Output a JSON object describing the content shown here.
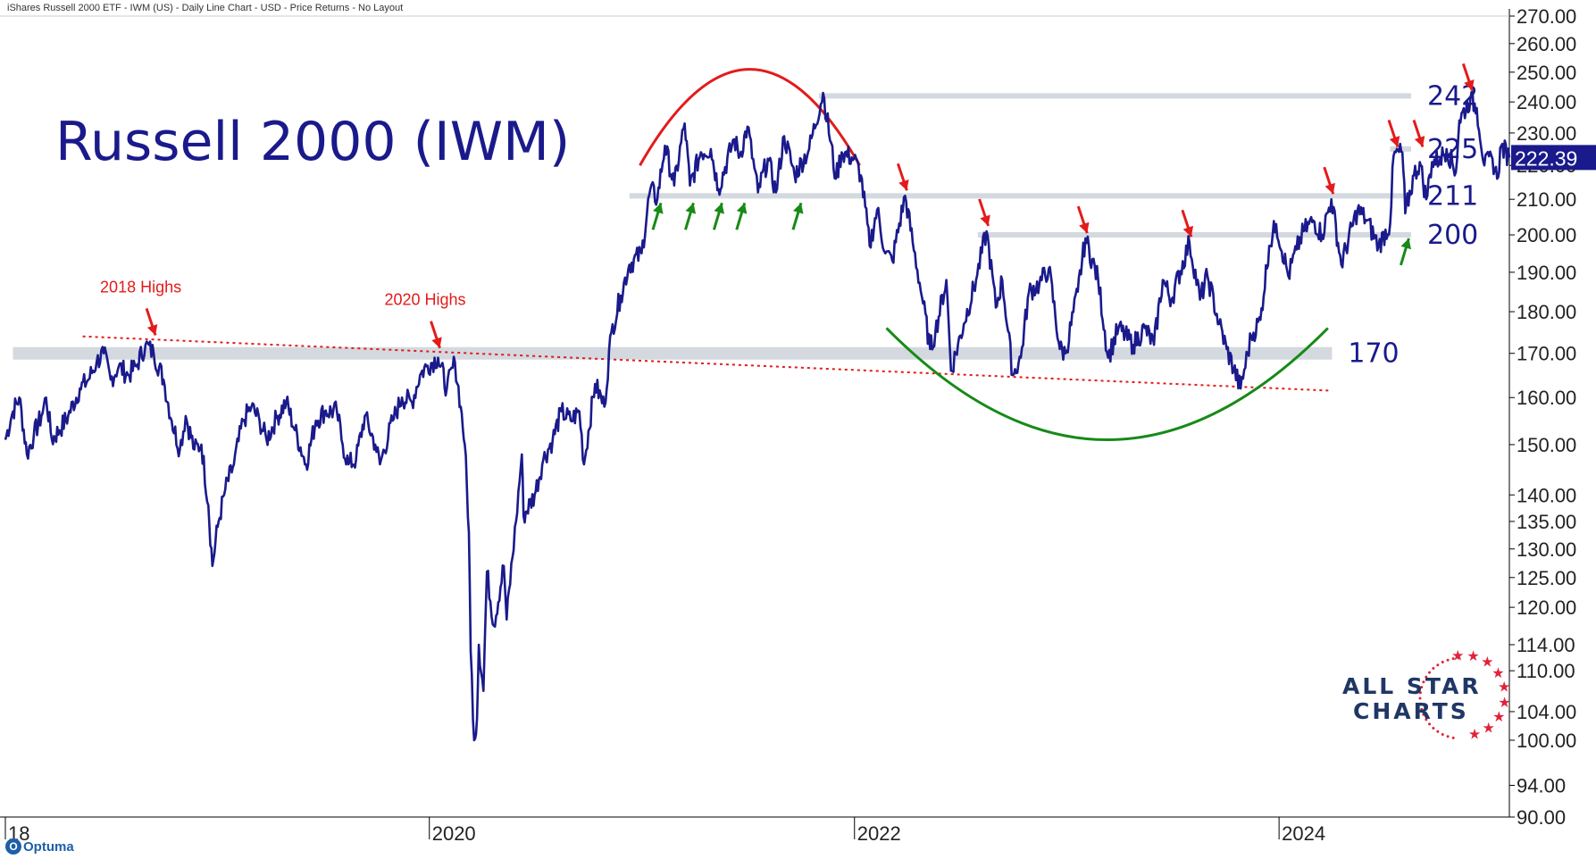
{
  "header": {
    "title": "iShares Russell 2000 ETF - IWM (US) - Daily Line Chart - USD - Price Returns - No Layout"
  },
  "main_title": "Russell 2000 (IWM)",
  "logo": {
    "line1": "ALL STAR",
    "line2": "CHARTS"
  },
  "watermark": "Optuma",
  "colors": {
    "price_line": "#1a1a8c",
    "resistance": "#e31b1b",
    "support": "#178a17",
    "level_band": "#d3d9df",
    "label_text": "#1a1a8c",
    "price_box": "#1a1a8c"
  },
  "chart_data": {
    "type": "line",
    "scale": "log",
    "ylim": [
      90,
      270
    ],
    "yticks": [
      90,
      94,
      100,
      104,
      110,
      114,
      120,
      125,
      130,
      135,
      140,
      150,
      160,
      170,
      180,
      190,
      200,
      210,
      220,
      230,
      240,
      250,
      260,
      270
    ],
    "ytick_labels": [
      "90.00",
      "94.00",
      "100.00",
      "104.00",
      "110.00",
      "114.00",
      "120.00",
      "125.00",
      "130.00",
      "135.00",
      "140.00",
      "150.00",
      "160.00",
      "170.00",
      "180.00",
      "190.00",
      "200.00",
      "210.00",
      "220.00",
      "230.00",
      "240.00",
      "250.00",
      "260.00",
      "270.00"
    ],
    "xlim": [
      "2018-01-02",
      "2025-01-31"
    ],
    "x_ticks": [
      {
        "date": "2018-01-01",
        "label": "18"
      },
      {
        "date": "2020-01-01",
        "label": "2020"
      },
      {
        "date": "2022-01-01",
        "label": "2022"
      },
      {
        "date": "2024-01-01",
        "label": "2024"
      }
    ],
    "last_price": {
      "value": 222.39,
      "label": "222.39"
    },
    "series": [
      {
        "values_note": "",
        "points": [
          [
            "2018-01-02",
            151
          ],
          [
            "2018-01-15",
            157
          ],
          [
            "2018-01-26",
            160
          ],
          [
            "2018-02-08",
            148
          ],
          [
            "2018-02-20",
            152
          ],
          [
            "2018-03-05",
            156
          ],
          [
            "2018-03-13",
            160
          ],
          [
            "2018-03-23",
            151
          ],
          [
            "2018-04-05",
            153
          ],
          [
            "2018-04-20",
            156
          ],
          [
            "2018-05-10",
            162
          ],
          [
            "2018-05-25",
            164
          ],
          [
            "2018-06-08",
            168
          ],
          [
            "2018-06-20",
            170
          ],
          [
            "2018-07-02",
            164
          ],
          [
            "2018-07-16",
            167
          ],
          [
            "2018-08-01",
            165
          ],
          [
            "2018-08-15",
            167
          ],
          [
            "2018-08-31",
            172
          ],
          [
            "2018-09-14",
            170
          ],
          [
            "2018-10-01",
            164
          ],
          [
            "2018-10-15",
            155
          ],
          [
            "2018-10-29",
            149
          ],
          [
            "2018-11-08",
            156
          ],
          [
            "2018-11-23",
            149
          ],
          [
            "2018-12-05",
            150
          ],
          [
            "2018-12-17",
            138
          ],
          [
            "2018-12-24",
            127
          ],
          [
            "2019-01-02",
            134
          ],
          [
            "2019-01-15",
            141
          ],
          [
            "2019-01-30",
            146
          ],
          [
            "2019-02-15",
            155
          ],
          [
            "2019-03-01",
            158
          ],
          [
            "2019-03-15",
            155
          ],
          [
            "2019-03-27",
            151
          ],
          [
            "2019-04-15",
            156
          ],
          [
            "2019-04-30",
            159
          ],
          [
            "2019-05-15",
            153
          ],
          [
            "2019-06-03",
            146
          ],
          [
            "2019-06-20",
            155
          ],
          [
            "2019-07-05",
            157
          ],
          [
            "2019-07-26",
            157
          ],
          [
            "2019-08-05",
            150
          ],
          [
            "2019-08-15",
            146
          ],
          [
            "2019-08-28",
            147
          ],
          [
            "2019-09-12",
            156
          ],
          [
            "2019-09-30",
            150
          ],
          [
            "2019-10-08",
            146
          ],
          [
            "2019-10-30",
            155
          ],
          [
            "2019-11-15",
            160
          ],
          [
            "2019-12-02",
            159
          ],
          [
            "2019-12-16",
            165
          ],
          [
            "2019-12-27",
            167
          ],
          [
            "2020-01-16",
            169
          ],
          [
            "2020-01-31",
            162
          ],
          [
            "2020-02-14",
            168
          ],
          [
            "2020-02-24",
            158
          ],
          [
            "2020-03-02",
            150
          ],
          [
            "2020-03-09",
            133
          ],
          [
            "2020-03-12",
            113
          ],
          [
            "2020-03-18",
            100
          ],
          [
            "2020-03-23",
            103
          ],
          [
            "2020-03-26",
            114
          ],
          [
            "2020-04-03",
            107
          ],
          [
            "2020-04-09",
            126
          ],
          [
            "2020-04-21",
            117
          ],
          [
            "2020-05-08",
            127
          ],
          [
            "2020-05-13",
            118
          ],
          [
            "2020-05-29",
            135
          ],
          [
            "2020-06-08",
            148
          ],
          [
            "2020-06-11",
            136
          ],
          [
            "2020-06-30",
            140
          ],
          [
            "2020-07-15",
            147
          ],
          [
            "2020-07-31",
            151
          ],
          [
            "2020-08-15",
            157
          ],
          [
            "2020-08-31",
            155
          ],
          [
            "2020-09-15",
            157
          ],
          [
            "2020-09-23",
            146
          ],
          [
            "2020-10-12",
            163
          ],
          [
            "2020-10-28",
            158
          ],
          [
            "2020-11-09",
            175
          ],
          [
            "2020-11-25",
            184
          ],
          [
            "2020-12-10",
            192
          ],
          [
            "2020-12-31",
            195
          ],
          [
            "2021-01-15",
            213
          ],
          [
            "2021-01-27",
            210
          ],
          [
            "2021-02-09",
            226
          ],
          [
            "2021-02-25",
            214
          ],
          [
            "2021-03-15",
            233
          ],
          [
            "2021-03-24",
            214
          ],
          [
            "2021-04-12",
            224
          ],
          [
            "2021-04-29",
            225
          ],
          [
            "2021-05-12",
            213
          ],
          [
            "2021-06-08",
            228
          ],
          [
            "2021-06-18",
            223
          ],
          [
            "2021-07-01",
            232
          ],
          [
            "2021-07-19",
            212
          ],
          [
            "2021-08-05",
            222
          ],
          [
            "2021-08-19",
            212
          ],
          [
            "2021-09-02",
            229
          ],
          [
            "2021-09-20",
            217
          ],
          [
            "2021-10-15",
            225
          ],
          [
            "2021-11-08",
            243
          ],
          [
            "2021-11-30",
            216
          ],
          [
            "2021-12-10",
            224
          ],
          [
            "2021-12-31",
            222
          ],
          [
            "2022-01-12",
            217
          ],
          [
            "2022-01-27",
            197
          ],
          [
            "2022-02-09",
            207
          ],
          [
            "2022-02-23",
            195
          ],
          [
            "2022-03-07",
            193
          ],
          [
            "2022-03-29",
            211
          ],
          [
            "2022-04-11",
            198
          ],
          [
            "2022-04-29",
            182
          ],
          [
            "2022-05-11",
            171
          ],
          [
            "2022-05-20",
            175
          ],
          [
            "2022-06-08",
            188
          ],
          [
            "2022-06-16",
            166
          ],
          [
            "2022-07-08",
            177
          ],
          [
            "2022-07-29",
            188
          ],
          [
            "2022-08-16",
            201
          ],
          [
            "2022-09-01",
            181
          ],
          [
            "2022-09-12",
            188
          ],
          [
            "2022-09-30",
            165
          ],
          [
            "2022-10-14",
            169
          ],
          [
            "2022-10-28",
            185
          ],
          [
            "2022-11-15",
            187
          ],
          [
            "2022-12-01",
            191
          ],
          [
            "2022-12-20",
            171
          ],
          [
            "2022-12-30",
            170
          ],
          [
            "2023-01-20",
            185
          ],
          [
            "2023-02-02",
            199
          ],
          [
            "2023-02-24",
            188
          ],
          [
            "2023-03-13",
            169
          ],
          [
            "2023-03-31",
            176
          ],
          [
            "2023-04-25",
            172
          ],
          [
            "2023-05-15",
            176
          ],
          [
            "2023-05-31",
            172
          ],
          [
            "2023-06-15",
            188
          ],
          [
            "2023-06-30",
            183
          ],
          [
            "2023-07-31",
            198
          ],
          [
            "2023-08-18",
            183
          ],
          [
            "2023-08-31",
            189
          ],
          [
            "2023-09-20",
            177
          ],
          [
            "2023-10-03",
            171
          ],
          [
            "2023-10-27",
            162
          ],
          [
            "2023-11-14",
            174
          ],
          [
            "2023-11-30",
            178
          ],
          [
            "2023-12-15",
            197
          ],
          [
            "2023-12-27",
            203
          ],
          [
            "2024-01-17",
            189
          ],
          [
            "2024-01-31",
            196
          ],
          [
            "2024-02-12",
            201
          ],
          [
            "2024-02-29",
            204
          ],
          [
            "2024-03-15",
            200
          ],
          [
            "2024-03-31",
            210
          ],
          [
            "2024-04-17",
            192
          ],
          [
            "2024-05-15",
            207
          ],
          [
            "2024-05-31",
            204
          ],
          [
            "2024-06-20",
            197
          ],
          [
            "2024-07-10",
            203
          ],
          [
            "2024-07-16",
            223
          ],
          [
            "2024-07-31",
            224
          ],
          [
            "2024-08-05",
            206
          ],
          [
            "2024-08-20",
            217
          ],
          [
            "2024-08-30",
            221
          ],
          [
            "2024-09-10",
            210
          ],
          [
            "2024-09-20",
            221
          ],
          [
            "2024-10-04",
            222
          ],
          [
            "2024-10-15",
            225
          ],
          [
            "2024-10-31",
            218
          ],
          [
            "2024-11-06",
            234
          ],
          [
            "2024-11-25",
            241
          ],
          [
            "2024-12-06",
            238
          ],
          [
            "2024-12-19",
            220
          ],
          [
            "2025-01-02",
            222
          ],
          [
            "2025-01-10",
            216
          ],
          [
            "2025-01-17",
            226
          ],
          [
            "2025-01-31",
            222.39
          ]
        ]
      }
    ],
    "levels": [
      {
        "value": 242,
        "label": "242",
        "from": "2021-11-01",
        "to": "2025-01-31"
      },
      {
        "value": 225,
        "label": "225",
        "from": "2024-07-10",
        "to": "2025-01-31"
      },
      {
        "value": 211,
        "label": "211",
        "from": "2020-12-10",
        "to": "2025-01-31"
      },
      {
        "value": 200,
        "label": "200",
        "from": "2022-08-01",
        "to": "2024-09-15"
      },
      {
        "value": 170,
        "label": "170",
        "from": "2018-01-15",
        "to": "2024-04-01"
      }
    ],
    "trendline": {
      "start": [
        "2018-05-15",
        174
      ],
      "end": [
        "2024-04-01",
        161.5
      ]
    },
    "annotations": [
      {
        "text": "2018 Highs",
        "date": "2018-09-14",
        "value": 173
      },
      {
        "text": "2020 Highs",
        "date": "2020-01-16",
        "value": 170
      }
    ],
    "arches": [
      {
        "type": "top",
        "from": [
          "2020-12-28",
          220
        ],
        "to": [
          "2022-01-10",
          220
        ],
        "peak": 251
      },
      {
        "type": "bottom",
        "from": [
          "2022-02-25",
          176
        ],
        "to": [
          "2024-03-25",
          176
        ],
        "trough": 151
      }
    ],
    "resistance_touches": [
      [
        "2022-03-29",
        211
      ],
      [
        "2022-08-16",
        201
      ],
      [
        "2023-02-02",
        199
      ],
      [
        "2023-07-31",
        198
      ],
      [
        "2024-03-31",
        210
      ],
      [
        "2024-07-20",
        224
      ],
      [
        "2024-09-01",
        224
      ],
      [
        "2024-11-25",
        242
      ]
    ],
    "support_touches": [
      [
        "2021-01-27",
        211
      ],
      [
        "2021-03-24",
        211
      ],
      [
        "2021-05-12",
        211
      ],
      [
        "2021-06-20",
        211
      ],
      [
        "2021-09-25",
        211
      ],
      [
        "2024-08-05",
        201
      ]
    ]
  }
}
